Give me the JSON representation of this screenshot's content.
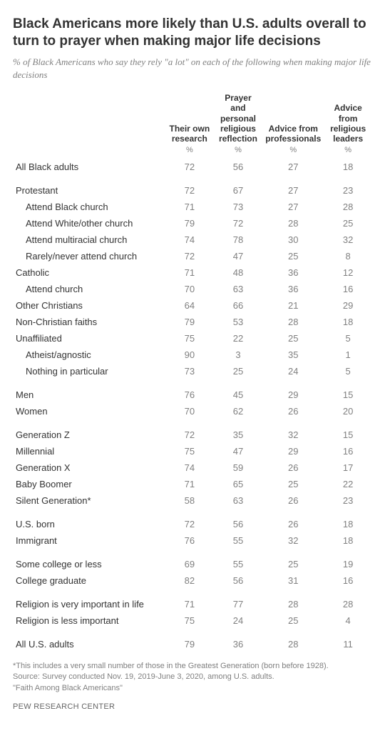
{
  "title": "Black Americans more likely than U.S. adults overall to turn to prayer when making major life decisions",
  "subtitle": "% of Black Americans who say they rely \"a lot\" on each of the following when making major life decisions",
  "columns": [
    "Their own research",
    "Prayer and personal religious reflection",
    "Advice from professionals",
    "Advice from religious leaders"
  ],
  "pct_label": "%",
  "groups": [
    {
      "rows": [
        {
          "label": "All Black adults",
          "vals": [
            72,
            56,
            27,
            18
          ],
          "indent": 0
        }
      ]
    },
    {
      "rows": [
        {
          "label": "Protestant",
          "vals": [
            72,
            67,
            27,
            23
          ],
          "indent": 0
        },
        {
          "label": "Attend Black church",
          "vals": [
            71,
            73,
            27,
            28
          ],
          "indent": 1
        },
        {
          "label": "Attend White/other church",
          "vals": [
            79,
            72,
            28,
            25
          ],
          "indent": 1
        },
        {
          "label": "Attend multiracial church",
          "vals": [
            74,
            78,
            30,
            32
          ],
          "indent": 1
        },
        {
          "label": "Rarely/never attend church",
          "vals": [
            72,
            47,
            25,
            8
          ],
          "indent": 1
        },
        {
          "label": "Catholic",
          "vals": [
            71,
            48,
            36,
            12
          ],
          "indent": 0
        },
        {
          "label": "Attend church",
          "vals": [
            70,
            63,
            36,
            16
          ],
          "indent": 1
        },
        {
          "label": "Other Christians",
          "vals": [
            64,
            66,
            21,
            29
          ],
          "indent": 0
        },
        {
          "label": "Non-Christian faiths",
          "vals": [
            79,
            53,
            28,
            18
          ],
          "indent": 0
        },
        {
          "label": "Unaffiliated",
          "vals": [
            75,
            22,
            25,
            5
          ],
          "indent": 0
        },
        {
          "label": "Atheist/agnostic",
          "vals": [
            90,
            3,
            35,
            1
          ],
          "indent": 1
        },
        {
          "label": "Nothing in particular",
          "vals": [
            73,
            25,
            24,
            5
          ],
          "indent": 1
        }
      ]
    },
    {
      "rows": [
        {
          "label": "Men",
          "vals": [
            76,
            45,
            29,
            15
          ],
          "indent": 0
        },
        {
          "label": "Women",
          "vals": [
            70,
            62,
            26,
            20
          ],
          "indent": 0
        }
      ]
    },
    {
      "rows": [
        {
          "label": "Generation Z",
          "vals": [
            72,
            35,
            32,
            15
          ],
          "indent": 0
        },
        {
          "label": "Millennial",
          "vals": [
            75,
            47,
            29,
            16
          ],
          "indent": 0
        },
        {
          "label": "Generation X",
          "vals": [
            74,
            59,
            26,
            17
          ],
          "indent": 0
        },
        {
          "label": "Baby Boomer",
          "vals": [
            71,
            65,
            25,
            22
          ],
          "indent": 0
        },
        {
          "label": "Silent Generation*",
          "vals": [
            58,
            63,
            26,
            23
          ],
          "indent": 0
        }
      ]
    },
    {
      "rows": [
        {
          "label": "U.S. born",
          "vals": [
            72,
            56,
            26,
            18
          ],
          "indent": 0
        },
        {
          "label": "Immigrant",
          "vals": [
            76,
            55,
            32,
            18
          ],
          "indent": 0
        }
      ]
    },
    {
      "rows": [
        {
          "label": "Some college or less",
          "vals": [
            69,
            55,
            25,
            19
          ],
          "indent": 0
        },
        {
          "label": "College graduate",
          "vals": [
            82,
            56,
            31,
            16
          ],
          "indent": 0
        }
      ]
    },
    {
      "rows": [
        {
          "label": "Religion is very important in life",
          "vals": [
            71,
            77,
            28,
            28
          ],
          "indent": 0
        },
        {
          "label": "Religion is less important",
          "vals": [
            75,
            24,
            25,
            4
          ],
          "indent": 0
        }
      ]
    },
    {
      "rows": [
        {
          "label": "All U.S. adults",
          "vals": [
            79,
            36,
            28,
            11
          ],
          "indent": 0
        }
      ]
    }
  ],
  "footnote": "*This includes a very small number of those in the Greatest Generation (born before 1928).\nSource: Survey conducted Nov. 19, 2019-June 3, 2020, among U.S. adults.\n\"Faith Among Black Americans\"",
  "brand": "PEW RESEARCH CENTER",
  "style": {
    "title_fontsize": 19,
    "subtitle_fontsize": 13,
    "header_fontsize": 12,
    "cell_fontsize": 13,
    "footnote_fontsize": 11,
    "text_color": "#333333",
    "muted_color": "#808080",
    "background": "#ffffff"
  }
}
